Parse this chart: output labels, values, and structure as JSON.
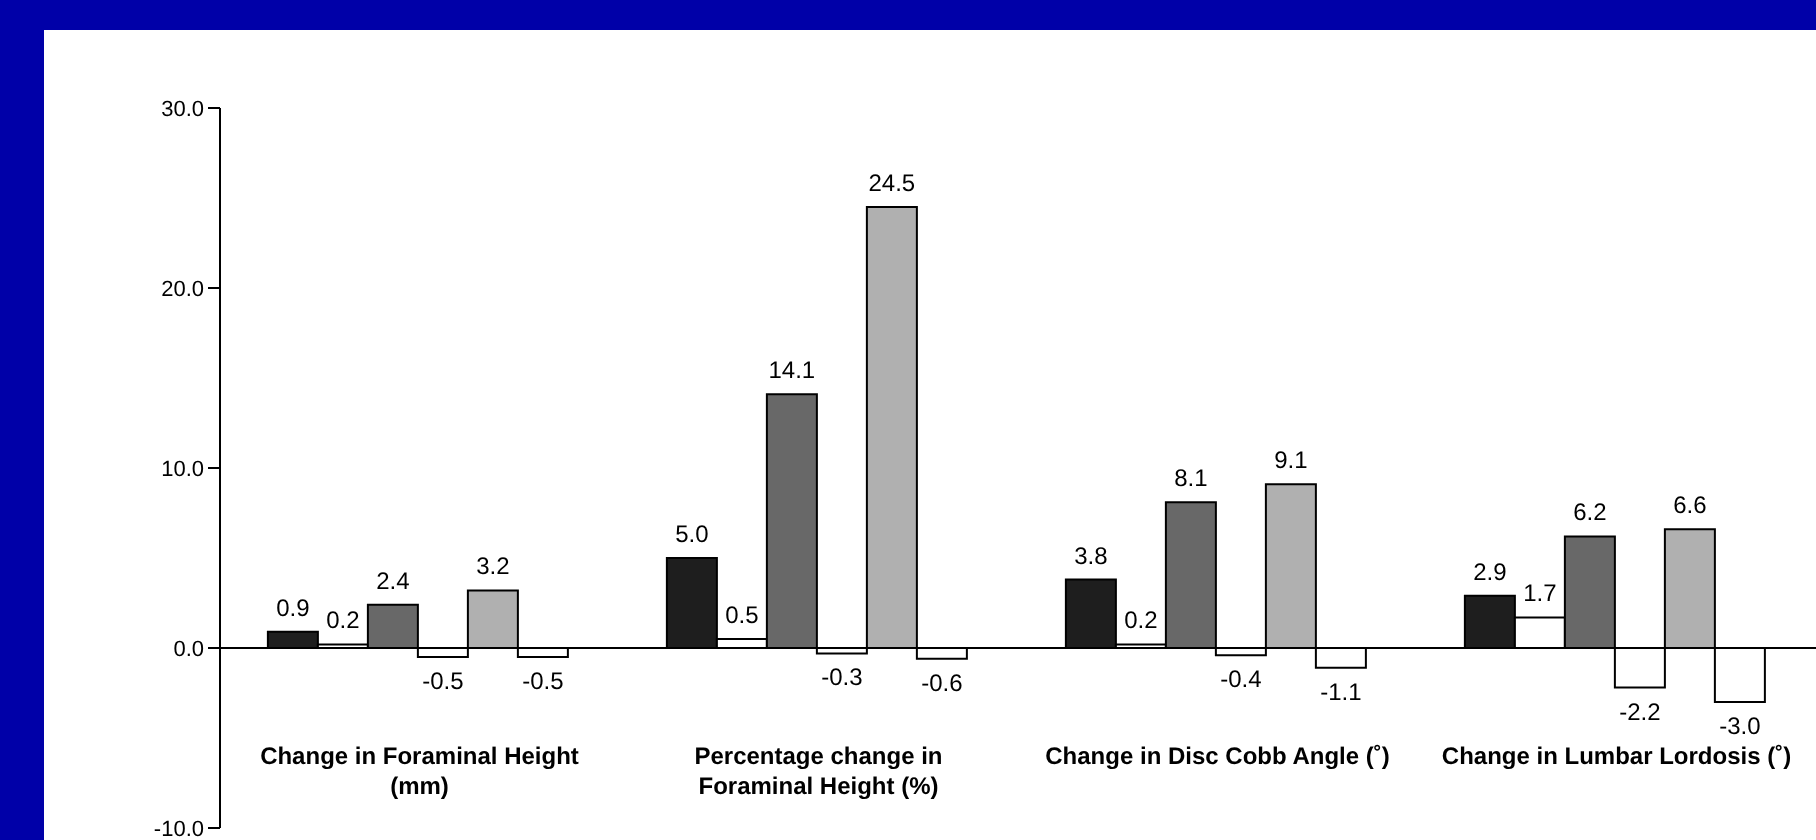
{
  "chart_data": {
    "type": "bar",
    "categories": [
      "Change in Foraminal Height (mm)",
      "Percentage change in Foraminal Height (%)",
      "Change in Disc Cobb Angle (˚)",
      "Change in Lumbar Lordosis (˚)"
    ],
    "series": [
      {
        "color": "#1e1e1e",
        "values": [
          0.9,
          5.0,
          3.8,
          2.9
        ],
        "value_labels": [
          "0.9",
          "5.0",
          "3.8",
          "2.9"
        ]
      },
      {
        "color": "#ffffff",
        "values": [
          0.2,
          0.5,
          0.2,
          1.7
        ],
        "value_labels": [
          "0.2",
          "0.5",
          "0.2",
          "1.7"
        ]
      },
      {
        "color": "#686868",
        "values": [
          2.4,
          14.1,
          8.1,
          6.2
        ],
        "value_labels": [
          "2.4",
          "14.1",
          "8.1",
          "6.2"
        ]
      },
      {
        "color": "#ffffff",
        "values": [
          -0.5,
          -0.3,
          -0.4,
          -2.2
        ],
        "value_labels": [
          "-0.5",
          "-0.3",
          "-0.4",
          "-2.2"
        ]
      },
      {
        "color": "#b0b0b0",
        "values": [
          3.2,
          24.5,
          9.1,
          6.6
        ],
        "value_labels": [
          "3.2",
          "24.5",
          "9.1",
          "6.6"
        ]
      },
      {
        "color": "#ffffff",
        "values": [
          -0.5,
          -0.6,
          -1.1,
          -3.0
        ],
        "value_labels": [
          "-0.5",
          "-0.6",
          "-1.1",
          "-3.0"
        ]
      }
    ],
    "ylim": [
      -10,
      30
    ],
    "yticks": [
      {
        "value": -10,
        "label": "-10.0"
      },
      {
        "value": 0,
        "label": "0.0"
      },
      {
        "value": 10,
        "label": "10.0"
      },
      {
        "value": 20,
        "label": "20.0"
      },
      {
        "value": 30,
        "label": "30.0"
      }
    ],
    "ref_lines": [
      {
        "axis": "y",
        "value": 0,
        "color": "#000000"
      }
    ],
    "legend": false
  }
}
